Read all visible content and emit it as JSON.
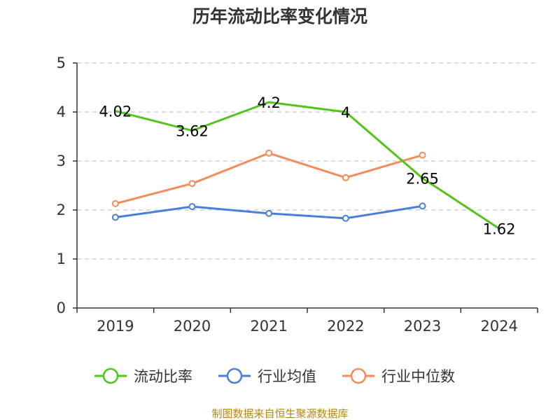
{
  "chart_data": {
    "type": "line",
    "title": "历年流动比率变化情况",
    "categories": [
      "2019",
      "2020",
      "2021",
      "2022",
      "2023",
      "2024"
    ],
    "ylim": [
      0,
      5
    ],
    "yticks": [
      "0",
      "1",
      "2",
      "3",
      "4",
      "5"
    ],
    "grid": true,
    "legend_position": "bottom",
    "series": [
      {
        "name": "流动比率",
        "color": "#52c41a",
        "values": [
          4.02,
          3.62,
          4.2,
          4.0,
          2.65,
          1.62
        ],
        "labels": [
          "4.02",
          "3.62",
          "4.2",
          "4",
          "2.65",
          "1.62"
        ],
        "markers": false
      },
      {
        "name": "行业均值",
        "color": "#4a7fd6",
        "values": [
          1.85,
          2.07,
          1.93,
          1.83,
          2.08,
          null
        ],
        "markers": true
      },
      {
        "name": "行业中位数",
        "color": "#f28c5a",
        "values": [
          2.13,
          2.54,
          3.16,
          2.66,
          3.12,
          null
        ],
        "markers": true
      }
    ]
  },
  "footer": {
    "source": "制图数据来自恒生聚源数据库"
  }
}
